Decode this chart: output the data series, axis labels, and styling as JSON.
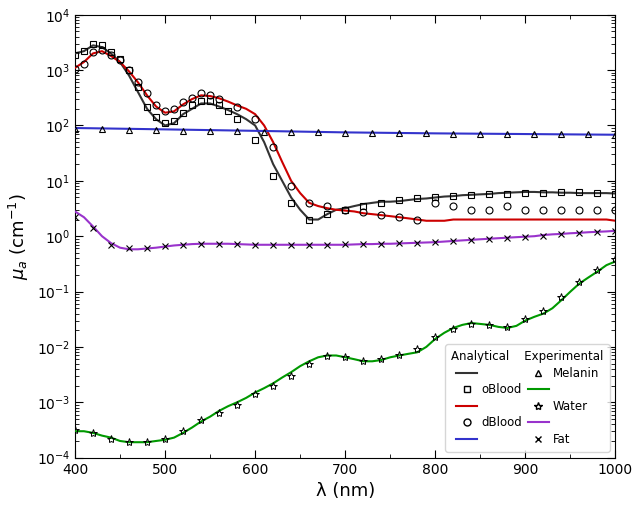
{
  "title": "",
  "xlabel": "λ (nm)",
  "ylabel": "μ_a (cm⁻¹)",
  "xlim": [
    400,
    1000
  ],
  "ylim_log": [
    -4,
    4
  ],
  "background_color": "#ffffff",
  "legend_loc": "lower right",
  "colors": {
    "oBlood": "#333333",
    "dBlood": "#cc0000",
    "Melanin": "#3333cc",
    "Water": "#009900",
    "Fat": "#9933cc"
  },
  "oBlood_analytical_x": [
    400,
    410,
    420,
    430,
    440,
    450,
    460,
    470,
    480,
    490,
    500,
    510,
    520,
    530,
    540,
    550,
    560,
    570,
    580,
    590,
    600,
    610,
    620,
    630,
    640,
    650,
    660,
    670,
    680,
    690,
    700,
    710,
    720,
    730,
    740,
    750,
    760,
    770,
    780,
    790,
    800,
    810,
    820,
    830,
    840,
    850,
    860,
    870,
    880,
    890,
    900,
    910,
    920,
    930,
    940,
    950,
    960,
    970,
    980,
    990,
    1000
  ],
  "oBlood_analytical_y": [
    2000,
    2200,
    2800,
    2600,
    2000,
    1400,
    800,
    400,
    200,
    130,
    100,
    110,
    160,
    200,
    250,
    250,
    220,
    190,
    160,
    130,
    100,
    50,
    20,
    10,
    5,
    3,
    2,
    2,
    2.5,
    3,
    3.2,
    3.5,
    3.8,
    4,
    4.2,
    4.2,
    4.3,
    4.5,
    4.7,
    4.8,
    5,
    5.2,
    5.3,
    5.5,
    5.6,
    5.7,
    5.8,
    6,
    6.1,
    6.2,
    6.3,
    6.3,
    6.2,
    6.2,
    6.1,
    6.1,
    6.0,
    6.0,
    6.0,
    6.0,
    5.9
  ],
  "oBlood_exp_x": [
    400,
    410,
    420,
    430,
    440,
    450,
    460,
    470,
    480,
    490,
    500,
    510,
    520,
    530,
    540,
    550,
    560,
    570,
    580,
    600,
    620,
    640,
    660,
    680,
    700,
    720,
    740,
    760,
    780,
    800,
    820,
    840,
    860,
    880,
    900,
    920,
    940,
    960,
    980,
    1000
  ],
  "oBlood_exp_y": [
    1900,
    2200,
    3000,
    2800,
    2100,
    1600,
    1000,
    500,
    220,
    140,
    110,
    120,
    170,
    230,
    280,
    280,
    230,
    180,
    130,
    55,
    12,
    4,
    2,
    2.5,
    3,
    3.5,
    4,
    4.5,
    4.8,
    5,
    5.3,
    5.5,
    5.7,
    5.9,
    6,
    6.1,
    6.2,
    6.2,
    6.1,
    5.8
  ],
  "dBlood_analytical_x": [
    400,
    410,
    420,
    430,
    440,
    450,
    460,
    470,
    480,
    490,
    500,
    510,
    520,
    530,
    540,
    550,
    560,
    570,
    580,
    590,
    600,
    610,
    620,
    630,
    640,
    650,
    660,
    670,
    680,
    690,
    700,
    710,
    720,
    730,
    740,
    750,
    760,
    770,
    780,
    790,
    800,
    810,
    820,
    830,
    840,
    850,
    860,
    870,
    880,
    890,
    900,
    910,
    920,
    930,
    940,
    950,
    960,
    970,
    980,
    990,
    1000
  ],
  "dBlood_analytical_y": [
    1100,
    1400,
    2000,
    2200,
    1800,
    1400,
    950,
    600,
    350,
    220,
    170,
    180,
    240,
    300,
    350,
    340,
    310,
    270,
    230,
    200,
    160,
    100,
    50,
    22,
    10,
    6,
    4,
    3.5,
    3.2,
    3.0,
    2.9,
    2.8,
    2.6,
    2.5,
    2.4,
    2.3,
    2.2,
    2.1,
    2.0,
    1.9,
    1.9,
    1.9,
    2.0,
    2.0,
    2.0,
    2.0,
    2.0,
    2.0,
    2.0,
    2.0,
    2.0,
    2.0,
    2.0,
    2.0,
    2.0,
    2.0,
    2.0,
    2.0,
    2.0,
    2.0,
    1.9
  ],
  "dBlood_exp_x": [
    400,
    410,
    420,
    430,
    440,
    450,
    460,
    470,
    480,
    490,
    500,
    510,
    520,
    530,
    540,
    550,
    560,
    580,
    600,
    620,
    640,
    660,
    680,
    700,
    720,
    740,
    760,
    780,
    800,
    820,
    840,
    860,
    880,
    900,
    920,
    940,
    960,
    980,
    1000
  ],
  "dBlood_exp_y": [
    1050,
    1300,
    2100,
    2300,
    1900,
    1500,
    1000,
    600,
    380,
    230,
    180,
    195,
    260,
    320,
    380,
    360,
    300,
    220,
    130,
    40,
    8,
    4,
    3.5,
    3.0,
    2.7,
    2.4,
    2.2,
    2.0,
    4,
    3.5,
    3,
    3,
    3.5,
    3,
    3,
    3,
    3,
    3,
    3
  ],
  "melanin_analytical_x": [
    400,
    500,
    600,
    700,
    800,
    900,
    1000
  ],
  "melanin_analytical_y": [
    90,
    85,
    80,
    75,
    72,
    70,
    68
  ],
  "melanin_exp_x": [
    400,
    430,
    460,
    490,
    520,
    550,
    580,
    610,
    640,
    670,
    700,
    730,
    760,
    790,
    820,
    850,
    880,
    910,
    940,
    970,
    1000
  ],
  "melanin_exp_y": [
    88,
    86,
    84,
    82,
    80,
    79,
    78,
    77,
    76,
    75,
    74,
    73,
    72,
    72,
    71,
    71,
    70,
    70,
    69,
    69,
    68
  ],
  "water_analytical_x": [
    400,
    410,
    420,
    430,
    440,
    450,
    460,
    470,
    480,
    490,
    500,
    510,
    520,
    530,
    540,
    550,
    560,
    570,
    580,
    590,
    600,
    610,
    620,
    630,
    640,
    650,
    660,
    670,
    680,
    690,
    700,
    710,
    720,
    730,
    740,
    750,
    760,
    770,
    780,
    790,
    800,
    810,
    820,
    830,
    840,
    850,
    860,
    870,
    880,
    890,
    900,
    910,
    920,
    930,
    940,
    950,
    960,
    970,
    980,
    990,
    1000
  ],
  "water_analytical_y": [
    0.0003,
    0.0003,
    0.00028,
    0.00025,
    0.00023,
    0.0002,
    0.00019,
    0.00019,
    0.00019,
    0.0002,
    0.00021,
    0.00023,
    0.00028,
    0.00035,
    0.00045,
    0.00055,
    0.0007,
    0.00085,
    0.001,
    0.0012,
    0.0015,
    0.0018,
    0.0022,
    0.0028,
    0.0035,
    0.0045,
    0.0055,
    0.0065,
    0.007,
    0.007,
    0.0065,
    0.006,
    0.0055,
    0.0055,
    0.0058,
    0.0065,
    0.007,
    0.0075,
    0.008,
    0.01,
    0.014,
    0.018,
    0.022,
    0.025,
    0.027,
    0.026,
    0.025,
    0.023,
    0.022,
    0.024,
    0.03,
    0.035,
    0.04,
    0.05,
    0.07,
    0.1,
    0.14,
    0.18,
    0.23,
    0.3,
    0.35
  ],
  "water_exp_x": [
    400,
    420,
    440,
    460,
    480,
    500,
    520,
    540,
    560,
    580,
    600,
    620,
    640,
    660,
    680,
    700,
    720,
    740,
    760,
    780,
    800,
    820,
    840,
    860,
    880,
    900,
    920,
    940,
    960,
    980,
    1000
  ],
  "water_exp_y": [
    0.00032,
    0.00028,
    0.00022,
    0.00019,
    0.000195,
    0.00022,
    0.0003,
    0.00048,
    0.00065,
    0.0009,
    0.0014,
    0.002,
    0.003,
    0.005,
    0.0068,
    0.0065,
    0.0055,
    0.006,
    0.007,
    0.009,
    0.015,
    0.021,
    0.026,
    0.025,
    0.023,
    0.032,
    0.045,
    0.08,
    0.15,
    0.25,
    0.38
  ],
  "fat_analytical_x": [
    400,
    410,
    420,
    430,
    440,
    450,
    460,
    470,
    480,
    490,
    500,
    510,
    520,
    530,
    540,
    550,
    560,
    570,
    580,
    590,
    600,
    610,
    620,
    630,
    640,
    650,
    660,
    670,
    680,
    690,
    700,
    710,
    720,
    730,
    740,
    750,
    760,
    770,
    780,
    790,
    800,
    810,
    820,
    830,
    840,
    850,
    860,
    870,
    880,
    890,
    900,
    910,
    920,
    930,
    940,
    950,
    960,
    970,
    980,
    990,
    1000
  ],
  "fat_analytical_y": [
    2.8,
    2.2,
    1.5,
    1.0,
    0.75,
    0.62,
    0.58,
    0.58,
    0.6,
    0.62,
    0.65,
    0.68,
    0.7,
    0.72,
    0.73,
    0.73,
    0.73,
    0.73,
    0.72,
    0.71,
    0.7,
    0.7,
    0.7,
    0.7,
    0.7,
    0.7,
    0.7,
    0.7,
    0.7,
    0.7,
    0.7,
    0.71,
    0.72,
    0.72,
    0.73,
    0.73,
    0.74,
    0.75,
    0.76,
    0.77,
    0.78,
    0.8,
    0.82,
    0.84,
    0.86,
    0.88,
    0.9,
    0.92,
    0.94,
    0.96,
    0.98,
    1.0,
    1.05,
    1.08,
    1.1,
    1.13,
    1.15,
    1.18,
    1.2,
    1.22,
    1.25
  ],
  "fat_exp_x": [
    400,
    420,
    440,
    460,
    480,
    500,
    520,
    540,
    560,
    580,
    600,
    620,
    640,
    660,
    680,
    700,
    720,
    740,
    760,
    780,
    800,
    820,
    840,
    860,
    880,
    900,
    920,
    940,
    960,
    980,
    1000
  ],
  "fat_exp_y": [
    2.2,
    1.4,
    0.7,
    0.6,
    0.62,
    0.66,
    0.7,
    0.73,
    0.73,
    0.71,
    0.7,
    0.7,
    0.7,
    0.7,
    0.7,
    0.71,
    0.72,
    0.73,
    0.74,
    0.76,
    0.79,
    0.82,
    0.85,
    0.88,
    0.92,
    0.98,
    1.02,
    1.08,
    1.12,
    1.18,
    1.22
  ]
}
